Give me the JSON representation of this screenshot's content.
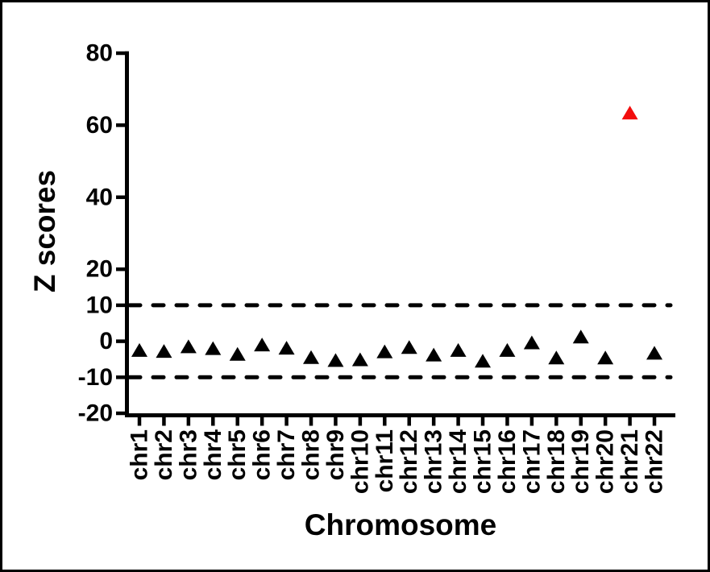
{
  "figure": {
    "background": "#ffffff",
    "border_color": "#000000",
    "axis_color": "#000000",
    "highlight_color": "#f20d0d"
  },
  "chart_data": {
    "type": "scatter",
    "marker": "triangle-up",
    "title": "",
    "xlabel": "Chromosome",
    "ylabel": "Z scores",
    "categories": [
      "chr1",
      "chr2",
      "chr3",
      "chr4",
      "chr5",
      "chr6",
      "chr7",
      "chr8",
      "chr9",
      "chr10",
      "chr11",
      "chr12",
      "chr13",
      "chr14",
      "chr15",
      "chr16",
      "chr17",
      "chr18",
      "chr19",
      "chr20",
      "chr21",
      "chr22"
    ],
    "series": [
      {
        "name": "Z scores",
        "values": [
          -2.4,
          -2.7,
          -1.4,
          -1.9,
          -3.5,
          -0.9,
          -1.8,
          -4.4,
          -5.2,
          -5.0,
          -2.8,
          -1.6,
          -3.7,
          -2.4,
          -5.4,
          -2.4,
          -0.3,
          -4.5,
          1.3,
          -4.5,
          63.5,
          -3.2
        ]
      }
    ],
    "point_colors": [
      "#000000",
      "#000000",
      "#000000",
      "#000000",
      "#000000",
      "#000000",
      "#000000",
      "#000000",
      "#000000",
      "#000000",
      "#000000",
      "#000000",
      "#000000",
      "#000000",
      "#000000",
      "#000000",
      "#000000",
      "#000000",
      "#000000",
      "#000000",
      "#f20d0d",
      "#000000"
    ],
    "highlighted_category": "chr21",
    "yticks": [
      80,
      60,
      40,
      20,
      10,
      0,
      -10,
      -20
    ],
    "ylim": [
      -20,
      80
    ],
    "reference_lines": [
      {
        "y": 10,
        "style": "dashed",
        "color": "#000000"
      },
      {
        "y": -10,
        "style": "dashed",
        "color": "#000000"
      }
    ],
    "grid": false,
    "legend": false
  }
}
